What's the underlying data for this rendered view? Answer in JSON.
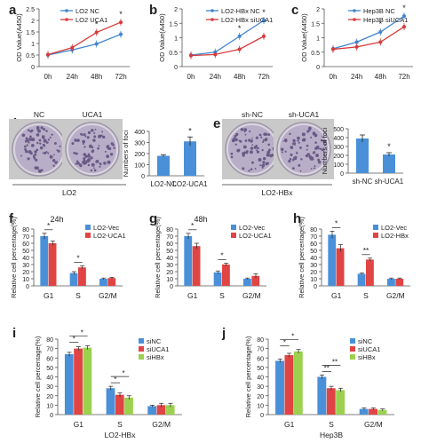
{
  "colors": {
    "blue": "#3f84cf",
    "red": "#d63a3a",
    "green": "#8cc640",
    "blue_bar": "#4a90d9",
    "red_bar": "#e04444",
    "green_bar": "#9bd14f"
  },
  "chart_data": [
    {
      "panel": "a",
      "type": "line",
      "x": [
        "0h",
        "24h",
        "48h",
        "72h"
      ],
      "ylabel": "OD Value(A450)",
      "ylim": [
        0,
        2.5
      ],
      "yticks": [
        0,
        0.5,
        1,
        1.5,
        2,
        2.5
      ],
      "series": [
        {
          "name": "LO2 NC",
          "values": [
            0.5,
            0.72,
            0.98,
            1.4
          ]
        },
        {
          "name": "LO2 UCA1",
          "values": [
            0.52,
            0.82,
            1.48,
            1.92
          ]
        }
      ],
      "significance": [
        "",
        "",
        "*",
        "*"
      ]
    },
    {
      "panel": "b",
      "type": "line",
      "x": [
        "0h",
        "24h",
        "48h",
        "72h"
      ],
      "ylabel": "OD Value(A450)",
      "ylim": [
        0,
        2.0
      ],
      "yticks": [
        0,
        0.5,
        1,
        1.5,
        2
      ],
      "series": [
        {
          "name": "LO2-HBx NC",
          "values": [
            0.4,
            0.5,
            1.05,
            1.6
          ]
        },
        {
          "name": "LO2-HBx siUCA1",
          "values": [
            0.38,
            0.42,
            0.6,
            1.05
          ]
        }
      ],
      "significance": [
        "",
        "",
        "*",
        "*"
      ]
    },
    {
      "panel": "c",
      "type": "line",
      "x": [
        "0h",
        "24h",
        "48h",
        "72h"
      ],
      "ylabel": "OD Value(A450)",
      "ylim": [
        0,
        2.0
      ],
      "yticks": [
        0,
        0.5,
        1,
        1.5,
        2
      ],
      "series": [
        {
          "name": "Hep3B NC",
          "values": [
            0.62,
            0.85,
            1.2,
            1.75
          ]
        },
        {
          "name": "Hep3B siUCA1",
          "values": [
            0.6,
            0.68,
            0.85,
            1.38
          ]
        }
      ],
      "significance": [
        "",
        "",
        "*",
        "*"
      ]
    },
    {
      "panel": "d",
      "type": "bar",
      "categories": [
        "LO2-NC",
        "LO2-UCA1"
      ],
      "values": [
        180,
        310
      ],
      "errors": [
        10,
        40
      ],
      "ylabel": "Numbers of foci",
      "ylim": [
        0,
        400
      ],
      "yticks": [
        0,
        100,
        200,
        300,
        400
      ],
      "significance": [
        "",
        "*"
      ],
      "image_labels": [
        "NC",
        "UCA1"
      ],
      "group_label": "LO2"
    },
    {
      "panel": "e",
      "type": "bar",
      "categories": [
        "sh-NC",
        "sh-UCA1"
      ],
      "values": [
        390,
        210
      ],
      "errors": [
        40,
        20
      ],
      "ylabel": "Numbers of foci",
      "ylim": [
        0,
        500
      ],
      "yticks": [
        0,
        100,
        200,
        300,
        400,
        500
      ],
      "significance": [
        "",
        "*"
      ],
      "image_labels": [
        "sh-NC",
        "sh-UCA1"
      ],
      "group_label": "LO2-HBx"
    },
    {
      "panel": "f",
      "type": "bar",
      "title": "24h",
      "categories": [
        "G1",
        "S",
        "G2/M"
      ],
      "ylabel": "Relative cell percentage(%)",
      "ylim": [
        0,
        80
      ],
      "yticks": [
        0,
        10,
        20,
        30,
        40,
        50,
        60,
        70,
        80
      ],
      "series": [
        {
          "name": "LO2-Vec",
          "values": [
            70,
            18,
            10
          ],
          "errors": [
            4,
            2,
            1
          ]
        },
        {
          "name": "LO2-UCA1",
          "values": [
            60,
            26,
            11
          ],
          "errors": [
            3,
            2,
            1
          ]
        }
      ],
      "significance": [
        "*",
        "*",
        ""
      ]
    },
    {
      "panel": "g",
      "type": "bar",
      "title": "48h",
      "categories": [
        "G1",
        "S",
        "G2/M"
      ],
      "ylabel": "Relative cell percentage(%)",
      "ylim": [
        0,
        80
      ],
      "yticks": [
        0,
        10,
        20,
        30,
        40,
        50,
        60,
        70,
        80
      ],
      "series": [
        {
          "name": "LO2-Vec",
          "values": [
            70,
            19,
            10
          ],
          "errors": [
            4,
            2,
            1
          ]
        },
        {
          "name": "LO2-UCA1",
          "values": [
            56,
            30,
            14
          ],
          "errors": [
            4,
            2,
            3
          ]
        }
      ],
      "significance": [
        "*",
        "*",
        ""
      ]
    },
    {
      "panel": "h",
      "type": "bar",
      "categories": [
        "G1",
        "S",
        "G2/M"
      ],
      "ylabel": "Relative cell percentage(%)",
      "ylim": [
        0,
        80
      ],
      "yticks": [
        0,
        10,
        20,
        30,
        40,
        50,
        60,
        70,
        80
      ],
      "series": [
        {
          "name": "LO2-Vec",
          "values": [
            72,
            17,
            10
          ],
          "errors": [
            5,
            1,
            1
          ]
        },
        {
          "name": "LO2-HBx",
          "values": [
            53,
            37,
            10
          ],
          "errors": [
            5,
            2,
            1
          ]
        }
      ],
      "significance": [
        "*",
        "**",
        ""
      ]
    },
    {
      "panel": "i",
      "type": "bar",
      "categories": [
        "G1",
        "S",
        "G2/M"
      ],
      "xlabel": "LO2-HBx",
      "ylabel": "Relative cell percentage(%)",
      "ylim": [
        0,
        80
      ],
      "yticks": [
        0,
        10,
        20,
        30,
        40,
        50,
        60,
        70,
        80
      ],
      "series": [
        {
          "name": "siNC",
          "values": [
            64,
            28,
            9
          ],
          "errors": [
            2,
            2,
            1
          ]
        },
        {
          "name": "siUCA1",
          "values": [
            70,
            21,
            10
          ],
          "errors": [
            2,
            2,
            2
          ]
        },
        {
          "name": "siHBx",
          "values": [
            71,
            18,
            10
          ],
          "errors": [
            2,
            2,
            2
          ]
        }
      ],
      "significance": [
        "*",
        "*",
        ""
      ]
    },
    {
      "panel": "j",
      "type": "bar",
      "categories": [
        "G1",
        "S",
        "G2/M"
      ],
      "xlabel": "Hep3B",
      "ylabel": "Relative cell percentage(%)",
      "ylim": [
        0,
        80
      ],
      "yticks": [
        0,
        10,
        20,
        30,
        40,
        50,
        60,
        70,
        80
      ],
      "series": [
        {
          "name": "siNC",
          "values": [
            57,
            40,
            6
          ],
          "errors": [
            2,
            2,
            1
          ]
        },
        {
          "name": "siUCA1",
          "values": [
            63,
            28,
            6
          ],
          "errors": [
            2,
            2,
            1
          ]
        },
        {
          "name": "siHBx",
          "values": [
            67,
            26,
            5
          ],
          "errors": [
            2,
            2,
            1
          ]
        }
      ],
      "significance": [
        "*",
        "**",
        ""
      ]
    }
  ]
}
